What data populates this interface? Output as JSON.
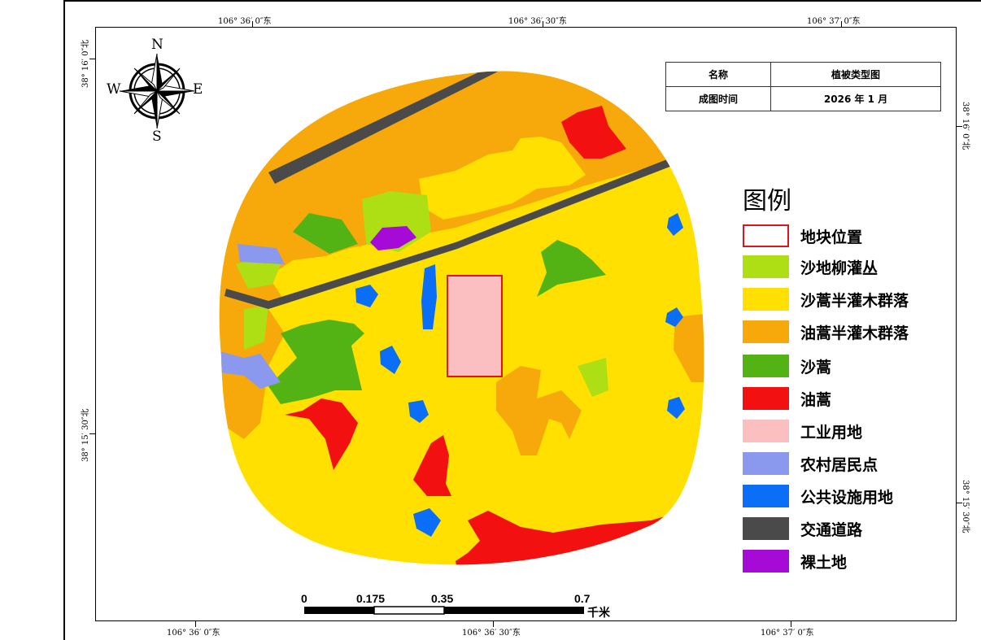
{
  "coords": {
    "top": [
      "106° 36′ 0″东",
      "106° 36′ 30″东",
      "106° 37′ 0″东"
    ],
    "bottom": [
      "106° 36′ 0″东",
      "106° 36′ 30″东",
      "106° 37′ 0″东"
    ],
    "left": [
      "38° 16′ 0″北",
      "38° 15′ 30″北"
    ],
    "right": [
      "38° 16′ 0″北",
      "38° 15′ 30″北"
    ]
  },
  "compass": {
    "n": "N",
    "s": "S",
    "e": "E",
    "w": "W"
  },
  "info": {
    "name_label": "名称",
    "name_value": "植被类型图",
    "date_label": "成图时间",
    "date_value": "2026 年 1 月"
  },
  "legend": {
    "title": "图例",
    "items": [
      {
        "label": "地块位置",
        "color": "#ffffff",
        "border": "#e0141c"
      },
      {
        "label": "沙地柳灌丛",
        "color": "#aede14"
      },
      {
        "label": "沙蒿半灌木群落",
        "color": "#ffe000"
      },
      {
        "label": "油蒿半灌木群落",
        "color": "#f7a80a"
      },
      {
        "label": "沙蒿",
        "color": "#53b214"
      },
      {
        "label": "油蒿",
        "color": "#f21010"
      },
      {
        "label": "工业用地",
        "color": "#fbbfc2"
      },
      {
        "label": "农村居民点",
        "color": "#8a98ee"
      },
      {
        "label": "公共设施用地",
        "color": "#0a6ef7"
      },
      {
        "label": "交通道路",
        "color": "#4a4a4a"
      },
      {
        "label": "裸土地",
        "color": "#a50ad6"
      }
    ]
  },
  "scale_bar": {
    "labels": [
      "0",
      "0.175",
      "0.35",
      "0.7"
    ],
    "unit": "千米"
  }
}
